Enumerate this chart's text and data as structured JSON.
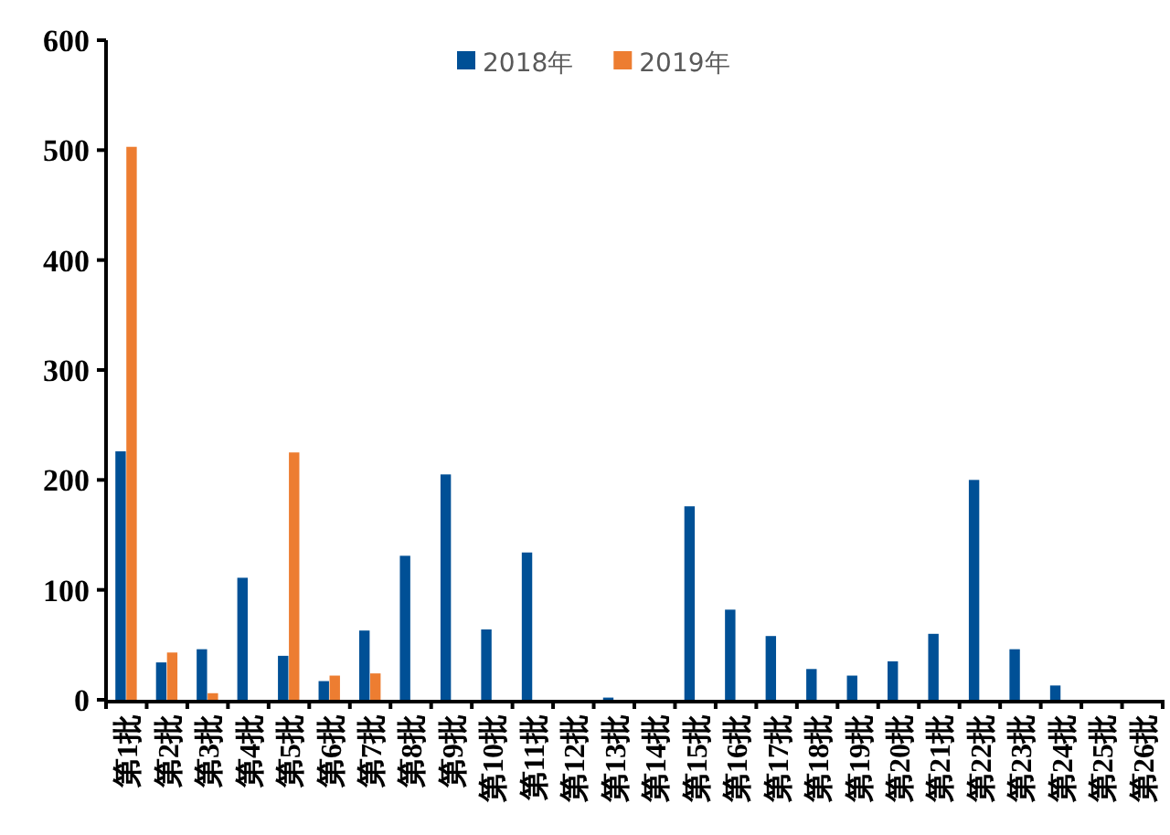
{
  "chart_data": {
    "type": "bar",
    "categories": [
      "第1批",
      "第2批",
      "第3批",
      "第4批",
      "第5批",
      "第6批",
      "第7批",
      "第8批",
      "第9批",
      "第10批",
      "第11批",
      "第12批",
      "第13批",
      "第14批",
      "第15批",
      "第16批",
      "第17批",
      "第18批",
      "第19批",
      "第20批",
      "第21批",
      "第22批",
      "第23批",
      "第24批",
      "第25批",
      "第26批"
    ],
    "series": [
      {
        "name": "2018年",
        "color": "#005096",
        "values": [
          226,
          34,
          46,
          111,
          40,
          17,
          63,
          131,
          205,
          64,
          134,
          0,
          2,
          0,
          176,
          82,
          58,
          28,
          22,
          35,
          60,
          200,
          46,
          13,
          0,
          0
        ]
      },
      {
        "name": "2019年",
        "color": "#ed7d31",
        "values": [
          503,
          43,
          6,
          null,
          225,
          22,
          24,
          null,
          null,
          null,
          null,
          null,
          null,
          null,
          null,
          null,
          null,
          null,
          null,
          null,
          null,
          null,
          null,
          null,
          null,
          null
        ]
      }
    ],
    "ylim": [
      0,
      600
    ],
    "yticks": [
      0,
      100,
      200,
      300,
      400,
      500,
      600
    ],
    "grid": false,
    "legend": "top"
  }
}
